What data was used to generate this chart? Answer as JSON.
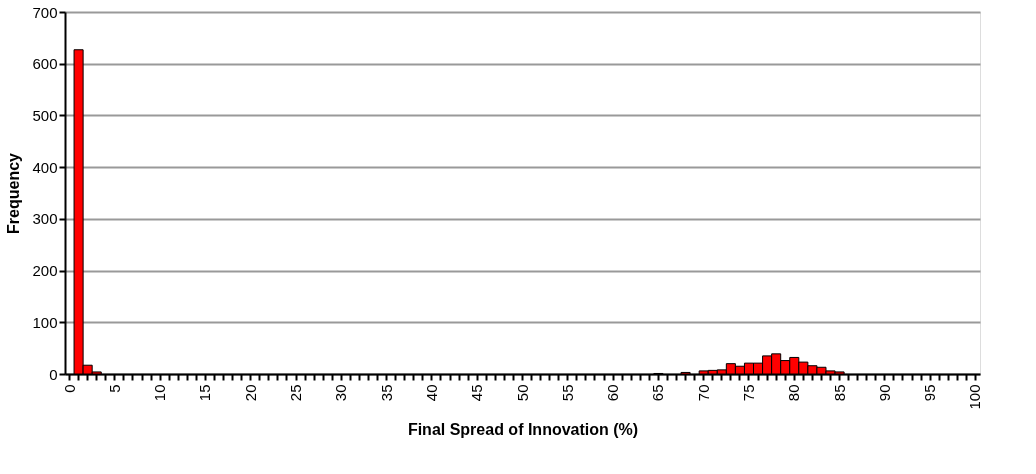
{
  "chart_data": {
    "type": "bar",
    "xlabel": "Final Spread of Innovation (%)",
    "ylabel": "Frequency",
    "categories": [
      "0",
      null,
      null,
      null,
      null,
      "5",
      null,
      null,
      null,
      null,
      "10",
      null,
      null,
      null,
      null,
      "15",
      null,
      null,
      null,
      null,
      "20",
      null,
      null,
      null,
      null,
      "25",
      null,
      null,
      null,
      null,
      "30",
      null,
      null,
      null,
      null,
      "35",
      null,
      null,
      null,
      null,
      "40",
      null,
      null,
      null,
      null,
      "45",
      null,
      null,
      null,
      null,
      "50",
      null,
      null,
      null,
      null,
      "55",
      null,
      null,
      null,
      null,
      "60",
      null,
      null,
      null,
      null,
      "65",
      null,
      null,
      null,
      null,
      "70",
      null,
      null,
      null,
      null,
      "75",
      null,
      null,
      null,
      null,
      "80",
      null,
      null,
      null,
      null,
      "85",
      null,
      null,
      null,
      null,
      "90",
      null,
      null,
      null,
      null,
      "95",
      null,
      null,
      null,
      null,
      "100"
    ],
    "values": [
      0,
      627,
      17,
      4,
      0,
      0,
      0,
      0,
      0,
      0,
      0,
      0,
      0,
      0,
      0,
      0,
      0,
      0,
      0,
      0,
      0,
      0,
      0,
      0,
      0,
      0,
      0,
      0,
      0,
      0,
      0,
      0,
      0,
      0,
      0,
      0,
      0,
      0,
      0,
      0,
      0,
      0,
      0,
      0,
      0,
      0,
      0,
      0,
      0,
      0,
      0,
      0,
      0,
      0,
      0,
      0,
      0,
      0,
      0,
      0,
      0,
      0,
      0,
      0,
      0,
      1,
      0,
      0,
      3,
      0,
      6,
      7,
      8,
      20,
      15,
      21,
      21,
      35,
      39,
      26,
      32,
      23,
      16,
      13,
      6,
      4,
      0,
      0,
      0,
      0,
      0,
      0,
      0,
      0,
      0,
      0,
      0,
      0,
      0,
      0,
      0
    ],
    "color": "#ff0000",
    "ylim": [
      0,
      700
    ],
    "yticks": [
      0,
      100,
      200,
      300,
      400,
      500,
      600,
      700
    ],
    "grid": "y"
  }
}
